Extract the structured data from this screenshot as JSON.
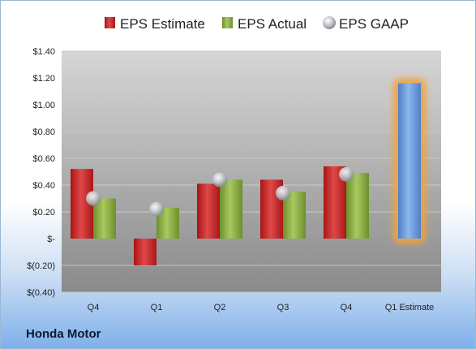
{
  "company": "Honda Motor",
  "chart_data": {
    "type": "bar",
    "categories": [
      "Q4",
      "Q1",
      "Q2",
      "Q3",
      "Q4",
      "Q1 Estimate"
    ],
    "series": [
      {
        "name": "EPS Estimate",
        "type": "bar",
        "color": "#cc2a2a",
        "values": [
          0.52,
          -0.2,
          0.41,
          0.44,
          0.54,
          null
        ]
      },
      {
        "name": "EPS Actual",
        "type": "bar",
        "color": "#8cb040",
        "values": [
          0.3,
          0.23,
          0.44,
          0.35,
          0.49,
          null
        ]
      },
      {
        "name": "EPS GAAP",
        "type": "marker",
        "color": "#b8bcc4",
        "values": [
          0.3,
          0.22,
          0.44,
          0.34,
          0.48,
          null
        ]
      }
    ],
    "forecast": {
      "category": "Q1 Estimate",
      "value": 1.16,
      "color": "#6699dd",
      "glow_color": "#f2a33a"
    },
    "yticks": [
      "$1.40",
      "$1.20",
      "$1.00",
      "$0.80",
      "$0.60",
      "$0.40",
      "$0.20",
      "$-",
      "$(0.20)",
      "$(0.40)"
    ],
    "ytick_values": [
      1.4,
      1.2,
      1.0,
      0.8,
      0.6,
      0.4,
      0.2,
      0.0,
      -0.2,
      -0.4
    ],
    "ylim": [
      -0.4,
      1.4
    ],
    "grid": true,
    "legend_position": "top"
  }
}
